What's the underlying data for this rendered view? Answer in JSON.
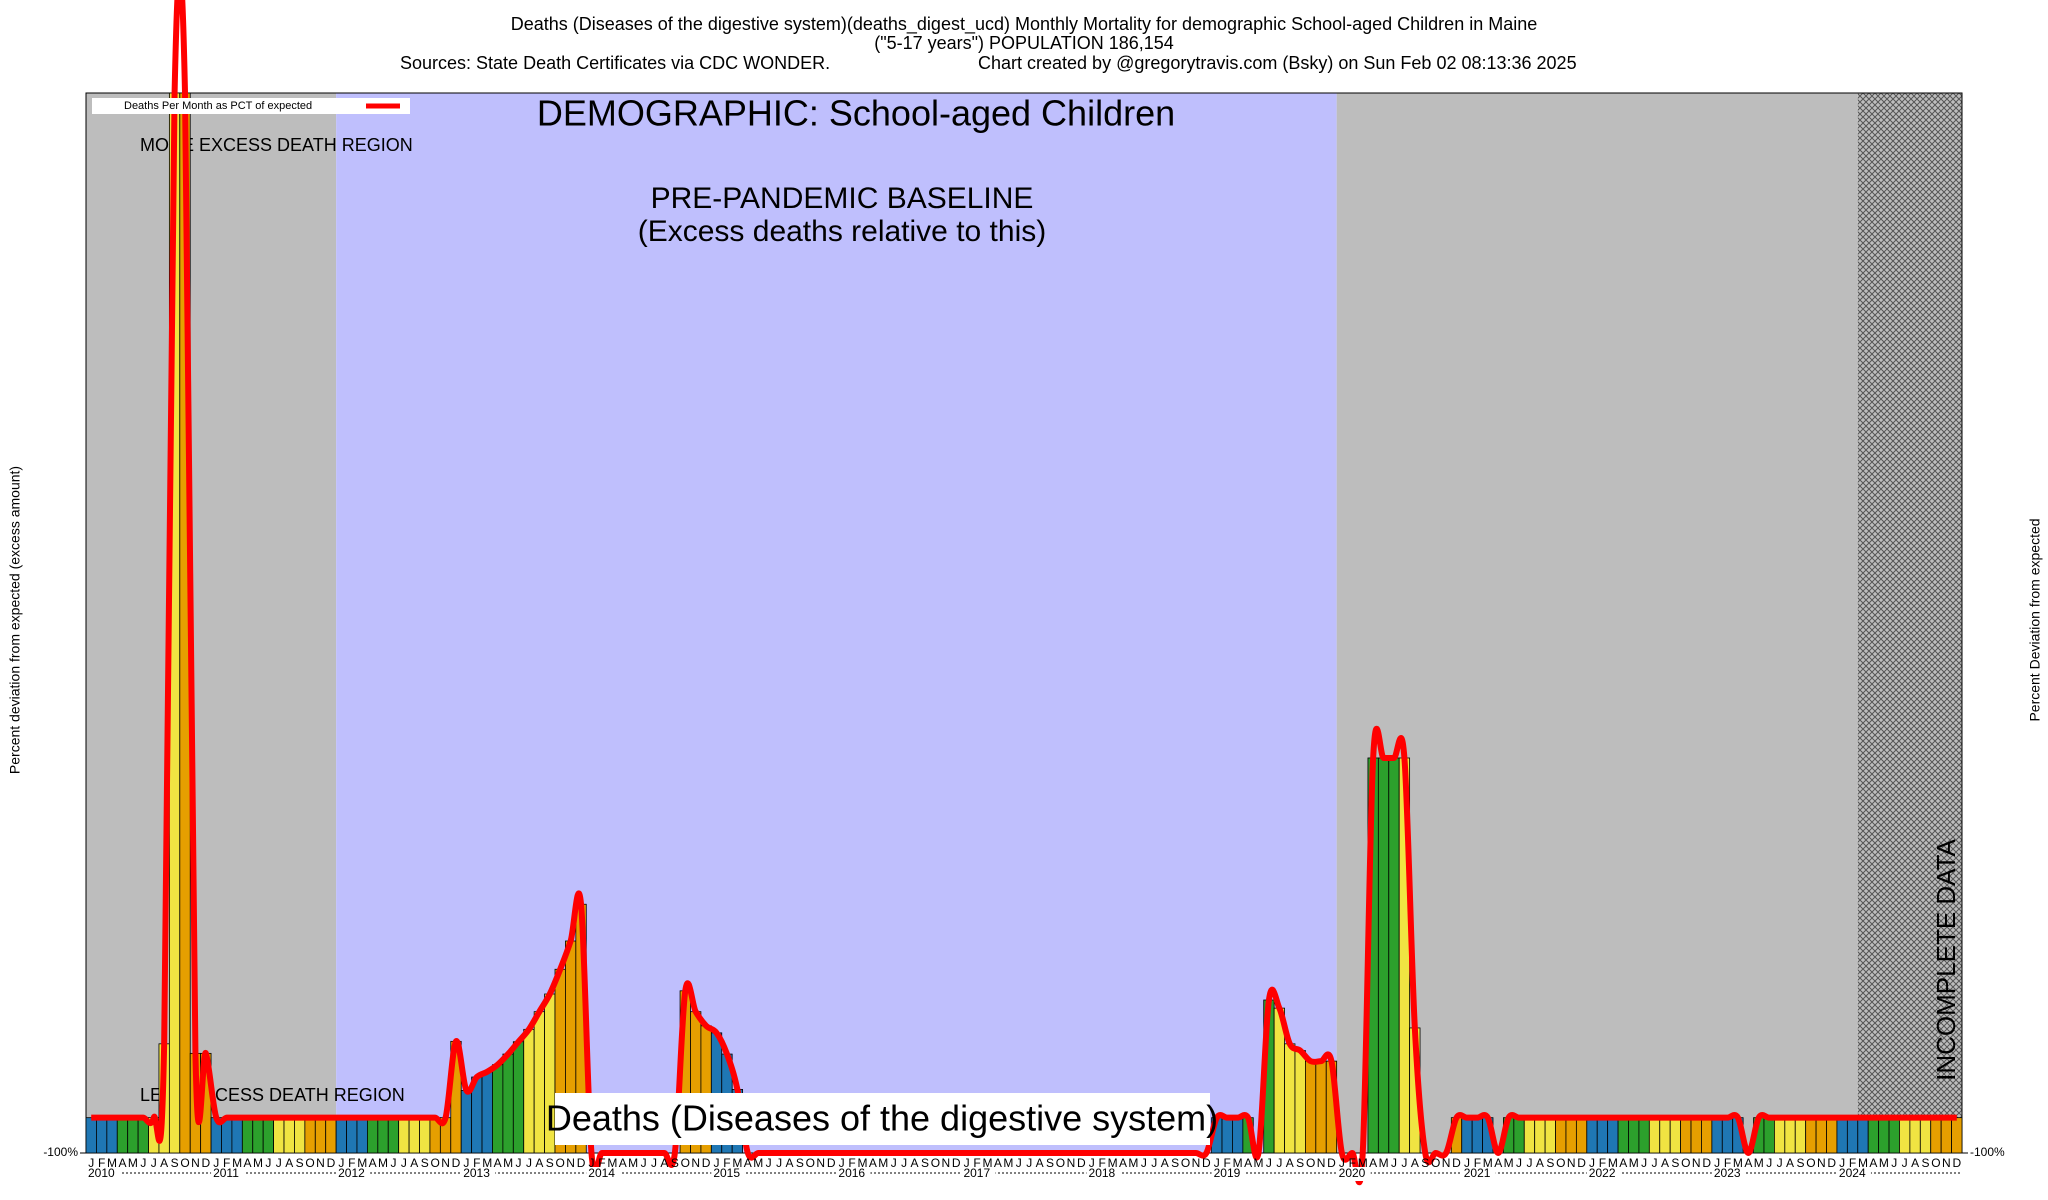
{
  "chart_data": {
    "type": "bar",
    "title": "Deaths (Diseases of the digestive system)(deaths_digest_ucd) Monthly Mortality for demographic School-aged Children in Maine",
    "subtitle": "(\"5-17 years\") POPULATION 186,154",
    "sources": "Sources: State Death Certificates via CDC WONDER.",
    "credit": "Chart created by @gregorytravis.com (Bsky) on Sun Feb 02 08:13:36 2025",
    "ylabel": "Percent deviation from expected (excess amount)",
    "y2label": "Percent Deviation from expected",
    "annotations": {
      "demographic": "DEMOGRAPHIC: School-aged Children",
      "more": "MORE EXCESS DEATH REGION",
      "less": "LESS EXCESS DEATH REGION",
      "baseline": "PRE-PANDEMIC BASELINE",
      "baseline_note": "(Excess deaths relative to this)",
      "incomplete": "INCOMPLETE DATA",
      "cause": "Deaths (Diseases of the digestive system)"
    },
    "month_labels": [
      "J",
      "F",
      "M",
      "A",
      "M",
      "J",
      "J",
      "A",
      "S",
      "O",
      "N",
      "D"
    ],
    "years": [
      "2010",
      "2011",
      "2012",
      "2013",
      "2014",
      "2015",
      "2016",
      "2017",
      "2018",
      "2019",
      "2020",
      "2021",
      "2022",
      "2023",
      "2024"
    ],
    "series": [
      {
        "name": "Deaths Per Month as PCT of expected",
        "color": "#ff0000",
        "bar_colors": [
          "#1f77b4",
          "#2ca02c",
          "#f0e442",
          "#e69f00"
        ],
        "values": [
          0,
          0,
          0,
          0,
          0,
          0,
          0,
          209,
          2900,
          2900,
          182,
          182,
          0,
          0,
          0,
          0,
          0,
          0,
          0,
          0,
          0,
          0,
          0,
          0,
          0,
          0,
          0,
          0,
          0,
          0,
          0,
          0,
          0,
          0,
          0,
          216,
          77,
          115,
          130,
          150,
          180,
          215,
          250,
          300,
          350,
          420,
          500,
          604,
          -100,
          -100,
          -100,
          -100,
          -100,
          -100,
          -100,
          -100,
          -100,
          359,
          300,
          260,
          240,
          180,
          80,
          -100,
          -100,
          -100,
          -100,
          -100,
          -100,
          -100,
          -100,
          -100,
          -100,
          -100,
          -100,
          -100,
          -100,
          -100,
          -100,
          -100,
          -100,
          -100,
          -100,
          -100,
          -100,
          -100,
          -100,
          -100,
          -100,
          -100,
          -100,
          -100,
          -100,
          -100,
          -100,
          -100,
          -100,
          -100,
          -100,
          -100,
          -100,
          -100,
          -100,
          -100,
          -100,
          -100,
          -100,
          -100,
          0,
          0,
          0,
          0,
          -100,
          333,
          310,
          209,
          190,
          160,
          160,
          160,
          -100,
          -100,
          -100,
          1018,
          1018,
          1018,
          1018,
          254,
          -100,
          -100,
          -100,
          0,
          0,
          0,
          0,
          -100,
          0,
          0,
          0,
          0,
          0,
          0,
          0,
          0,
          0,
          0,
          0,
          0,
          0,
          0,
          0,
          0,
          0,
          0,
          0,
          0,
          0,
          0,
          0,
          -100,
          0,
          0,
          0,
          0,
          0,
          0,
          0,
          0,
          0,
          0,
          0,
          0,
          0,
          0,
          0,
          0,
          0,
          0,
          0,
          0
        ]
      }
    ],
    "ylim": [
      -100,
      2900
    ],
    "yticks": [
      {
        "value": -100,
        "label": "-100%"
      }
    ]
  }
}
